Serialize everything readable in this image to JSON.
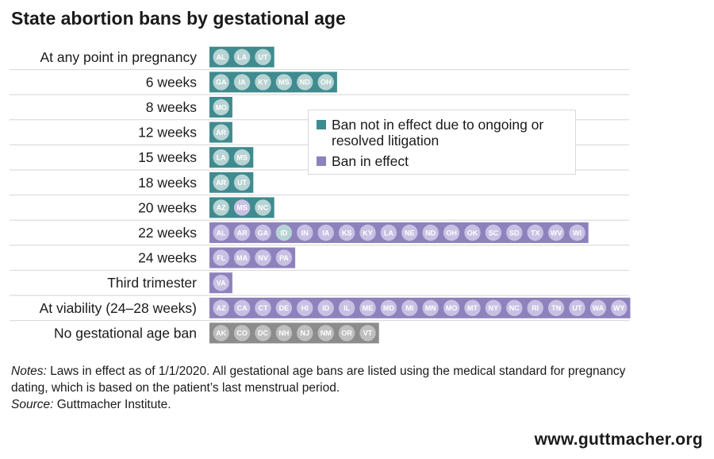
{
  "title": "State abortion bans by gestational age",
  "legend": [
    {
      "label": "Ban not in effect due to ongoing or resolved litigation",
      "color": "#3f8b8f"
    },
    {
      "label": "Ban in effect",
      "color": "#8e82bd"
    }
  ],
  "colors": {
    "litigation": "#3f8b8f",
    "in_effect": "#8e82bd",
    "no_ban": "#8c8c8c"
  },
  "chart_data": {
    "type": "table",
    "rows": [
      {
        "label": "At any point in pregnancy",
        "bar_color": "litigation",
        "states": [
          {
            "code": "AL",
            "status": "litigation"
          },
          {
            "code": "LA",
            "status": "litigation"
          },
          {
            "code": "UT",
            "status": "litigation"
          }
        ]
      },
      {
        "label": "6 weeks",
        "bar_color": "litigation",
        "states": [
          {
            "code": "GA",
            "status": "litigation"
          },
          {
            "code": "IA",
            "status": "litigation"
          },
          {
            "code": "KY",
            "status": "litigation"
          },
          {
            "code": "MS",
            "status": "litigation"
          },
          {
            "code": "ND",
            "status": "litigation"
          },
          {
            "code": "OH",
            "status": "litigation"
          }
        ]
      },
      {
        "label": "8 weeks",
        "bar_color": "litigation",
        "states": [
          {
            "code": "MO",
            "status": "litigation"
          }
        ]
      },
      {
        "label": "12 weeks",
        "bar_color": "litigation",
        "states": [
          {
            "code": "AR",
            "status": "litigation"
          }
        ]
      },
      {
        "label": "15 weeks",
        "bar_color": "litigation",
        "states": [
          {
            "code": "LA",
            "status": "litigation"
          },
          {
            "code": "MS",
            "status": "litigation"
          }
        ]
      },
      {
        "label": "18 weeks",
        "bar_color": "litigation",
        "states": [
          {
            "code": "AR",
            "status": "litigation"
          },
          {
            "code": "UT",
            "status": "litigation"
          }
        ]
      },
      {
        "label": "20 weeks",
        "bar_color": "litigation",
        "states": [
          {
            "code": "AZ",
            "status": "litigation"
          },
          {
            "code": "MS",
            "status": "in_effect"
          },
          {
            "code": "NC",
            "status": "litigation"
          }
        ]
      },
      {
        "label": "22 weeks",
        "bar_color": "in_effect",
        "states": [
          {
            "code": "AL",
            "status": "in_effect"
          },
          {
            "code": "AR",
            "status": "in_effect"
          },
          {
            "code": "GA",
            "status": "in_effect"
          },
          {
            "code": "ID",
            "status": "litigation"
          },
          {
            "code": "IN",
            "status": "in_effect"
          },
          {
            "code": "IA",
            "status": "in_effect"
          },
          {
            "code": "KS",
            "status": "in_effect"
          },
          {
            "code": "KY",
            "status": "in_effect"
          },
          {
            "code": "LA",
            "status": "in_effect"
          },
          {
            "code": "NE",
            "status": "in_effect"
          },
          {
            "code": "ND",
            "status": "in_effect"
          },
          {
            "code": "OH",
            "status": "in_effect"
          },
          {
            "code": "OK",
            "status": "in_effect"
          },
          {
            "code": "SC",
            "status": "in_effect"
          },
          {
            "code": "SD",
            "status": "in_effect"
          },
          {
            "code": "TX",
            "status": "in_effect"
          },
          {
            "code": "WV",
            "status": "in_effect"
          },
          {
            "code": "WI",
            "status": "in_effect"
          }
        ]
      },
      {
        "label": "24 weeks",
        "bar_color": "in_effect",
        "states": [
          {
            "code": "FL",
            "status": "in_effect"
          },
          {
            "code": "MA",
            "status": "in_effect"
          },
          {
            "code": "NV",
            "status": "in_effect"
          },
          {
            "code": "PA",
            "status": "in_effect"
          }
        ]
      },
      {
        "label": "Third trimester",
        "bar_color": "in_effect",
        "states": [
          {
            "code": "VA",
            "status": "in_effect"
          }
        ]
      },
      {
        "label": "At viability (24–28 weeks)",
        "bar_color": "in_effect",
        "states": [
          {
            "code": "AZ",
            "status": "in_effect"
          },
          {
            "code": "CA",
            "status": "in_effect"
          },
          {
            "code": "CT",
            "status": "in_effect"
          },
          {
            "code": "DE",
            "status": "in_effect"
          },
          {
            "code": "HI",
            "status": "in_effect"
          },
          {
            "code": "ID",
            "status": "in_effect"
          },
          {
            "code": "IL",
            "status": "in_effect"
          },
          {
            "code": "ME",
            "status": "in_effect"
          },
          {
            "code": "MD",
            "status": "in_effect"
          },
          {
            "code": "MI",
            "status": "in_effect"
          },
          {
            "code": "MN",
            "status": "in_effect"
          },
          {
            "code": "MO",
            "status": "in_effect"
          },
          {
            "code": "MT",
            "status": "in_effect"
          },
          {
            "code": "NY",
            "status": "in_effect"
          },
          {
            "code": "NC",
            "status": "in_effect"
          },
          {
            "code": "RI",
            "status": "in_effect"
          },
          {
            "code": "TN",
            "status": "in_effect"
          },
          {
            "code": "UT",
            "status": "in_effect"
          },
          {
            "code": "WA",
            "status": "in_effect"
          },
          {
            "code": "WY",
            "status": "in_effect"
          }
        ]
      },
      {
        "label": "No gestational age ban",
        "bar_color": "no_ban",
        "states": [
          {
            "code": "AK",
            "status": "no_ban"
          },
          {
            "code": "CO",
            "status": "no_ban"
          },
          {
            "code": "DC",
            "status": "no_ban"
          },
          {
            "code": "NH",
            "status": "no_ban"
          },
          {
            "code": "NJ",
            "status": "no_ban"
          },
          {
            "code": "NM",
            "status": "no_ban"
          },
          {
            "code": "OR",
            "status": "no_ban"
          },
          {
            "code": "VT",
            "status": "no_ban"
          }
        ]
      }
    ]
  },
  "notes": {
    "notes_lead": "Notes:",
    "notes_text": " Laws in effect as of 1/1/2020. All gestational age bans are listed using the medical standard for pregnancy dating, which is based on the patient’s last menstrual period.",
    "source_lead": "Source:",
    "source_text": " Guttmacher Institute."
  },
  "website": "www.guttmacher.org"
}
